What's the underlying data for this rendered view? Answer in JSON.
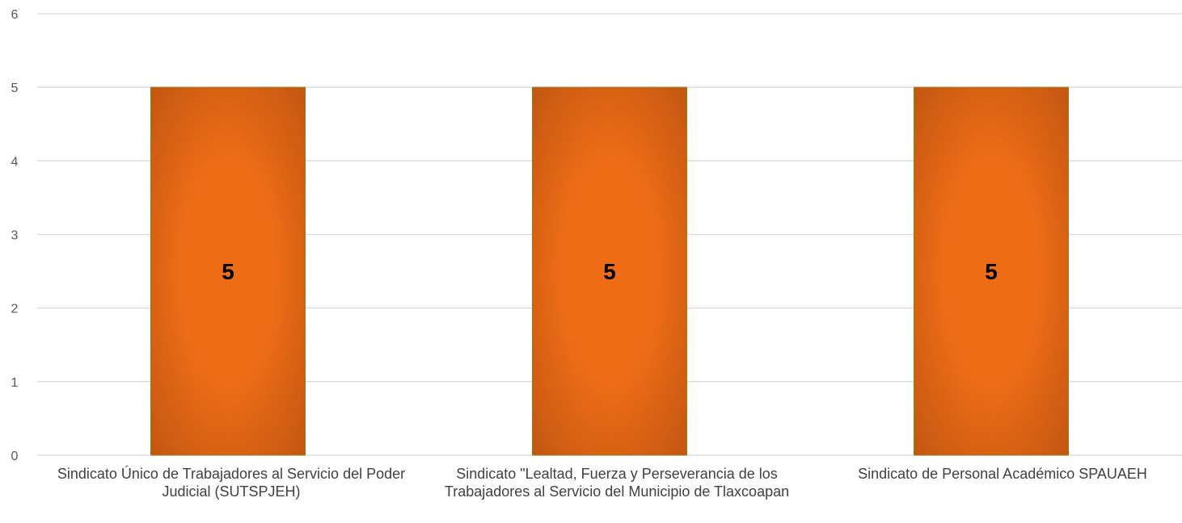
{
  "chart_data": {
    "type": "bar",
    "categories": [
      "Sindicato Único de Trabajadores al Servicio del Poder Judicial (SUTSPJEH)",
      "Sindicato \"Lealtad, Fuerza y Perseverancia de los Trabajadores al Servicio del Municipio de Tlaxcoapan",
      "Sindicato de Personal Académico SPAUAEH"
    ],
    "values": [
      5,
      5,
      5
    ],
    "data_labels": [
      "5",
      "5",
      "5"
    ],
    "title": "",
    "xlabel": "",
    "ylabel": "",
    "ylim": [
      0,
      6
    ],
    "yticks": [
      "0",
      "1",
      "2",
      "3",
      "4",
      "5",
      "6"
    ],
    "grid": true,
    "legend": "none",
    "colors": {
      "bar_center": "#ee6c16",
      "bar_edge": "#bd5412",
      "bar_border": "#9a7a14",
      "gridline": "#d9d9d9",
      "tick_text": "#595959",
      "category_text": "#404040",
      "data_label": "#000000"
    }
  }
}
